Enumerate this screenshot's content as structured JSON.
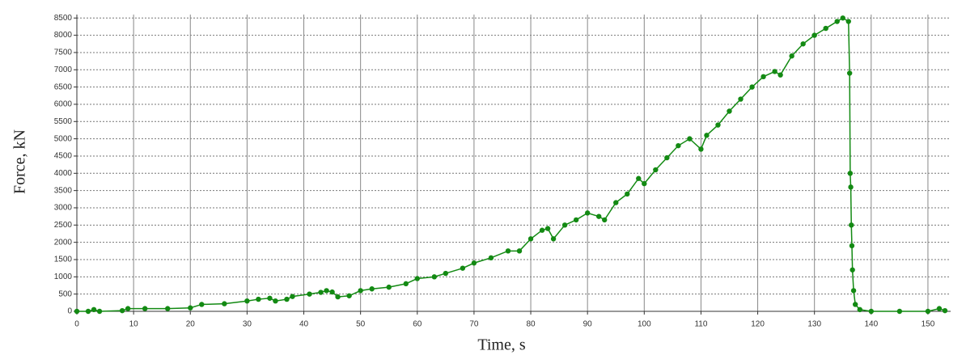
{
  "chart_data": {
    "type": "line",
    "x_label": "Time, s",
    "y_label": "Force, kN",
    "xlim": [
      0,
      154
    ],
    "ylim": [
      0,
      8600
    ],
    "xticks": [
      0,
      10,
      20,
      30,
      40,
      50,
      60,
      70,
      80,
      90,
      100,
      110,
      120,
      130,
      140,
      150
    ],
    "yticks": [
      0,
      500,
      1000,
      1500,
      2000,
      2500,
      3000,
      3500,
      4000,
      4500,
      5000,
      5500,
      6000,
      6500,
      7000,
      7500,
      8000,
      8500
    ],
    "grid": true,
    "series": [
      {
        "color": "#138a13",
        "x": [
          0,
          2,
          3,
          4,
          8,
          9,
          12,
          16,
          20,
          22,
          26,
          30,
          32,
          34,
          35,
          37,
          38,
          41,
          43,
          44,
          45,
          46,
          48,
          50,
          52,
          55,
          58,
          60,
          63,
          65,
          68,
          70,
          73,
          76,
          78,
          80,
          82,
          83,
          84,
          86,
          88,
          90,
          92,
          93,
          95,
          97,
          99,
          100,
          102,
          104,
          106,
          108,
          110,
          111,
          113,
          115,
          117,
          119,
          121,
          123,
          124,
          126,
          128,
          130,
          132,
          134,
          135,
          136,
          136.2,
          136.3,
          136.4,
          136.5,
          136.6,
          136.7,
          136.9,
          137.2,
          138,
          140,
          145,
          150,
          152,
          153
        ],
        "values": [
          0,
          0,
          50,
          0,
          20,
          80,
          80,
          80,
          100,
          200,
          220,
          300,
          350,
          380,
          300,
          350,
          430,
          500,
          550,
          600,
          560,
          420,
          450,
          600,
          650,
          700,
          800,
          950,
          1000,
          1100,
          1250,
          1400,
          1550,
          1750,
          1750,
          2100,
          2350,
          2400,
          2100,
          2500,
          2650,
          2850,
          2750,
          2650,
          3150,
          3400,
          3850,
          3700,
          4100,
          4450,
          4800,
          5000,
          4700,
          5100,
          5400,
          5800,
          6150,
          6500,
          6800,
          6950,
          6850,
          7400,
          7750,
          8000,
          8200,
          8400,
          8500,
          8400,
          6900,
          4000,
          3600,
          2500,
          1900,
          1200,
          600,
          200,
          50,
          0,
          0,
          0,
          80,
          20
        ]
      }
    ]
  }
}
